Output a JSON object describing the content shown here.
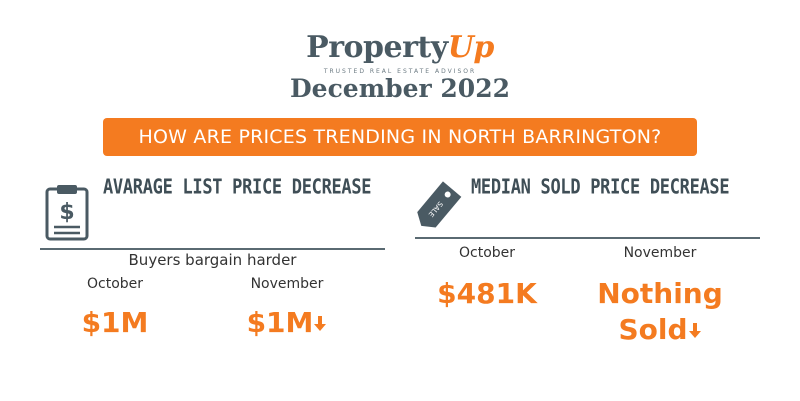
{
  "brand": {
    "name_main": "Property",
    "name_accent": "Up",
    "tagline": "TRUSTED REAL ESTATE ADVISOR",
    "date": "December 2022"
  },
  "banner": {
    "text": "HOW ARE PRICES TRENDING IN NORTH BARRINGTON?"
  },
  "list_price": {
    "title": "AVARAGE LIST PRICE DECREASE",
    "subtitle": "Buyers bargain harder",
    "col1_month": "October",
    "col1_value": "$1M",
    "col2_month": "November",
    "col2_value": "$1M",
    "icon": "clipboard-dollar-icon"
  },
  "sold_price": {
    "title": "MEDIAN SOLD PRICE DECREASE",
    "col1_month": "October",
    "col1_value": "$481K",
    "col2_month": "November",
    "col2_value_line1": "Nothing",
    "col2_value_line2": "Sold",
    "icon": "sale-tag-icon"
  },
  "colors": {
    "accent": "#f47b20",
    "slate": "#4a5a63"
  }
}
